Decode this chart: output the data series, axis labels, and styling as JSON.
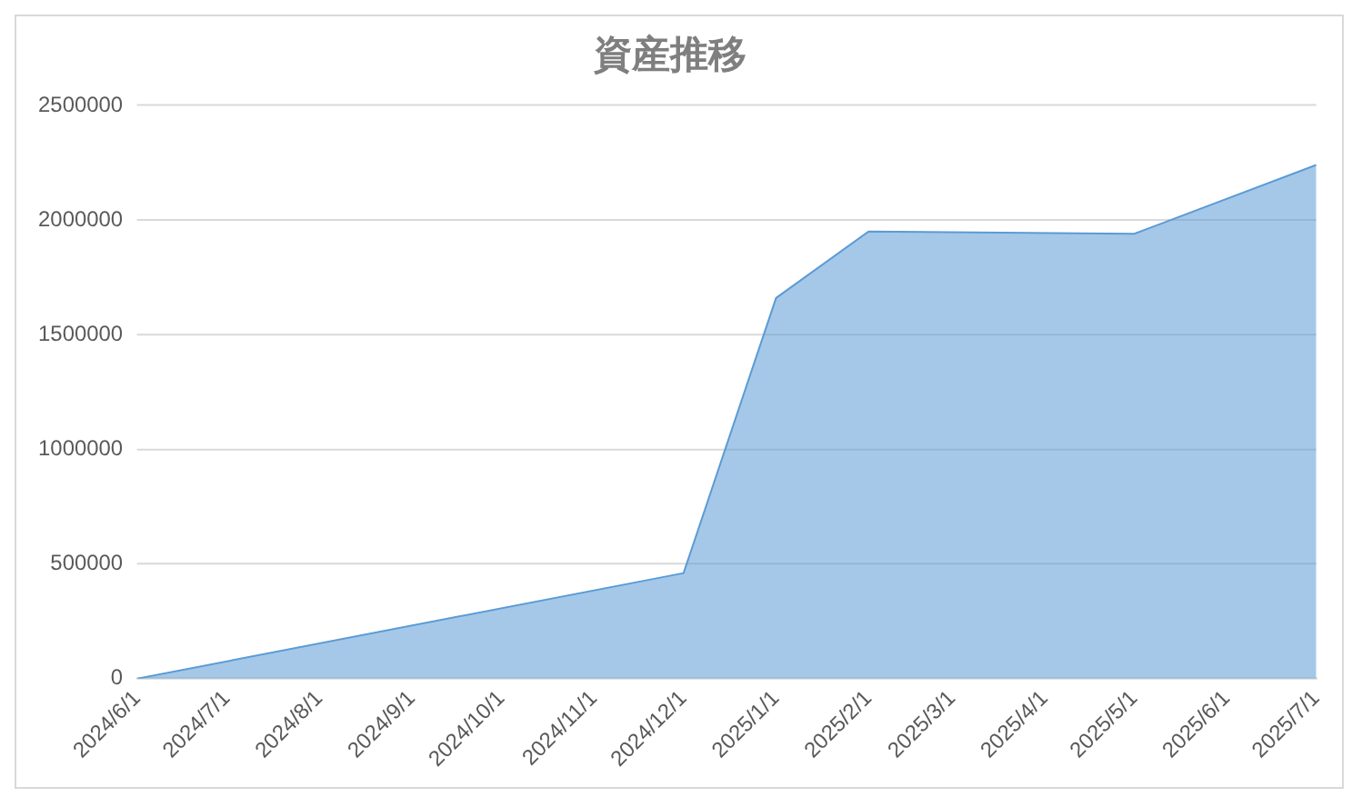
{
  "chart_data": {
    "type": "area",
    "title": "資産推移",
    "x": [
      "2024-06-01",
      "2024-12-01",
      "2025-01-01",
      "2025-02-01",
      "2025-05-01",
      "2025-07-01"
    ],
    "values": [
      0,
      460000,
      1660000,
      1950000,
      1940000,
      2240000
    ],
    "color": "#5b9bd5",
    "xlim": [
      "2024-06-01",
      "2025-07-01"
    ],
    "xticks": [
      {
        "value": "2024-06-01",
        "label": "2024/6/1"
      },
      {
        "value": "2024-07-01",
        "label": "2024/7/1"
      },
      {
        "value": "2024-08-01",
        "label": "2024/8/1"
      },
      {
        "value": "2024-09-01",
        "label": "2024/9/1"
      },
      {
        "value": "2024-10-01",
        "label": "2024/10/1"
      },
      {
        "value": "2024-11-01",
        "label": "2024/11/1"
      },
      {
        "value": "2024-12-01",
        "label": "2024/12/1"
      },
      {
        "value": "2025-01-01",
        "label": "2025/1/1"
      },
      {
        "value": "2025-02-01",
        "label": "2025/2/1"
      },
      {
        "value": "2025-03-01",
        "label": "2025/3/1"
      },
      {
        "value": "2025-04-01",
        "label": "2025/4/1"
      },
      {
        "value": "2025-05-01",
        "label": "2025/5/1"
      },
      {
        "value": "2025-06-01",
        "label": "2025/6/1"
      },
      {
        "value": "2025-07-01",
        "label": "2025/7/1"
      }
    ],
    "ylim": [
      0,
      2500000
    ],
    "yticks": [
      0,
      500000,
      1000000,
      1500000,
      2000000,
      2500000
    ],
    "grid": "y",
    "legend": false,
    "marker": "none"
  }
}
